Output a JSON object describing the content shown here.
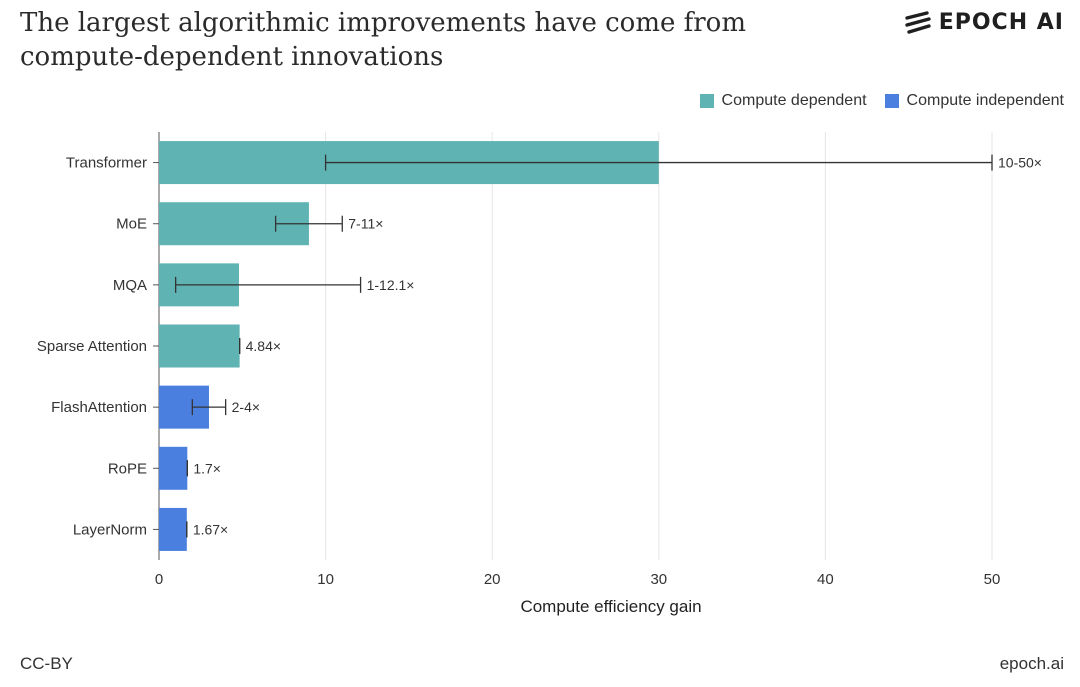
{
  "title": "The largest algorithmic improvements have come from compute-dependent innovations",
  "brand": {
    "name": "EPOCH AI",
    "logo_icon": "epoch-stripes-icon"
  },
  "footer": {
    "license": "CC-BY",
    "site": "epoch.ai"
  },
  "colors": {
    "compute_dependent": "#5fb3b3",
    "compute_independent": "#4a7fe0",
    "error_bar": "#333333",
    "grid": "#e6e6e6"
  },
  "chart_data": {
    "type": "bar",
    "orientation": "horizontal",
    "xlabel": "Compute efficiency gain",
    "ylabel": "",
    "xlim": [
      0,
      52
    ],
    "x_ticks": [
      0,
      10,
      20,
      30,
      40,
      50
    ],
    "grid": true,
    "legend_position": "top-right",
    "legend": [
      {
        "name": "Compute dependent",
        "color": "#5fb3b3"
      },
      {
        "name": "Compute independent",
        "color": "#4a7fe0"
      }
    ],
    "bars": [
      {
        "category": "Transformer",
        "value": 30,
        "low": 10,
        "high": 50,
        "label": "10-50×",
        "group": "Compute dependent"
      },
      {
        "category": "MoE",
        "value": 9,
        "low": 7,
        "high": 11,
        "label": "7-11×",
        "group": "Compute dependent"
      },
      {
        "category": "MQA",
        "value": 4.8,
        "low": 1,
        "high": 12.1,
        "label": "1-12.1×",
        "group": "Compute dependent"
      },
      {
        "category": "Sparse Attention",
        "value": 4.84,
        "low": 4.84,
        "high": 4.84,
        "label": "4.84×",
        "group": "Compute dependent"
      },
      {
        "category": "FlashAttention",
        "value": 3,
        "low": 2,
        "high": 4,
        "label": "2-4×",
        "group": "Compute independent"
      },
      {
        "category": "RoPE",
        "value": 1.7,
        "low": 1.7,
        "high": 1.7,
        "label": "1.7×",
        "group": "Compute independent"
      },
      {
        "category": "LayerNorm",
        "value": 1.67,
        "low": 1.67,
        "high": 1.67,
        "label": "1.67×",
        "group": "Compute independent"
      }
    ]
  }
}
